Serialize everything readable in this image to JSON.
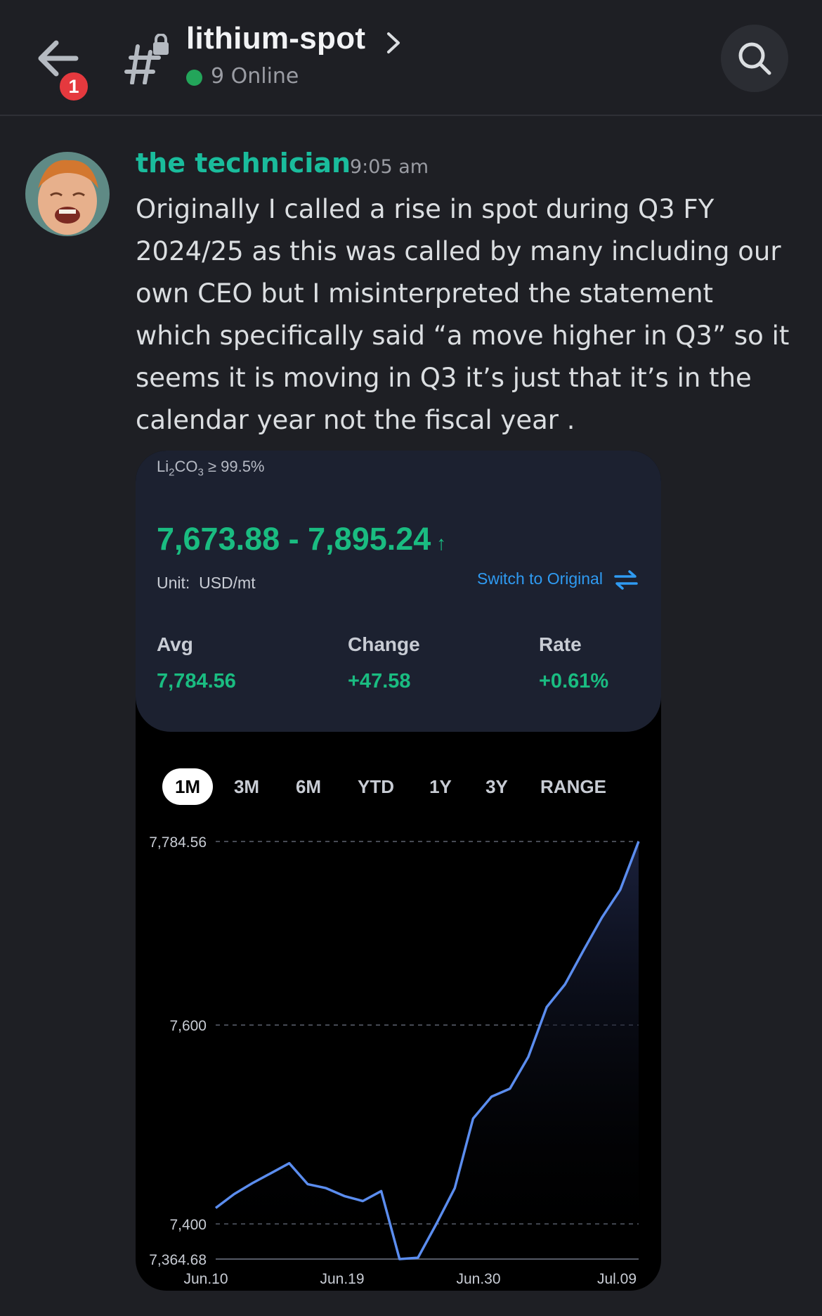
{
  "header": {
    "channel_name": "lithium-spot",
    "online_count": "9 Online",
    "notification_badge": "1"
  },
  "message": {
    "username": "the technician",
    "timestamp": "9:05 am",
    "text": "Originally I called a rise in spot during Q3 FY\n2024/25 as this was called by many including our\nown CEO but I misinterpreted the statement\nwhich specifically said “a move higher in Q3” so it\nseems it is moving in Q3 it’s just that it’s in the\ncalendar year not the fiscal year ."
  },
  "attachment": {
    "product_base": "Li",
    "product_sub1": "2",
    "product_mid": "CO",
    "product_sub2": "3",
    "product_tail": " ≥ 99.5%",
    "price_range": "7,673.88 - 7,895.24",
    "unit_label": "Unit:",
    "unit_value": "USD/mt",
    "switch_label": "Switch to Original",
    "stats": [
      {
        "label": "Avg",
        "value": "7,784.56"
      },
      {
        "label": "Change",
        "value": "+47.58"
      },
      {
        "label": "Rate",
        "value": "+0.61%"
      }
    ],
    "range_tabs": [
      "1M",
      "3M",
      "6M",
      "YTD",
      "1Y",
      "3Y",
      "RANGE"
    ],
    "active_tab": "1M"
  },
  "colors": {
    "accent_green": "#1abc81",
    "username_teal": "#1abc9c",
    "link_blue": "#2f9bf2",
    "line_blue": "#5b8def",
    "background": "#1e1f24"
  },
  "chart_data": {
    "type": "area",
    "y_ticks": [
      "7,784.56",
      "7,600",
      "7,400",
      "7,364.68"
    ],
    "y_tick_values": [
      7784.56,
      7600,
      7400,
      7364.68
    ],
    "x_ticks": [
      "Jun.10",
      "Jun.19",
      "Jun.30",
      "Jul.09"
    ],
    "ylim": [
      7364.68,
      7784.56
    ],
    "grid": true,
    "values": [
      7416,
      7430,
      7441,
      7451,
      7461,
      7440,
      7436,
      7428,
      7423,
      7433,
      7364.68,
      7366,
      7400,
      7436,
      7506,
      7528,
      7536,
      7568,
      7618,
      7641,
      7675,
      7708,
      7736,
      7784.56
    ]
  }
}
